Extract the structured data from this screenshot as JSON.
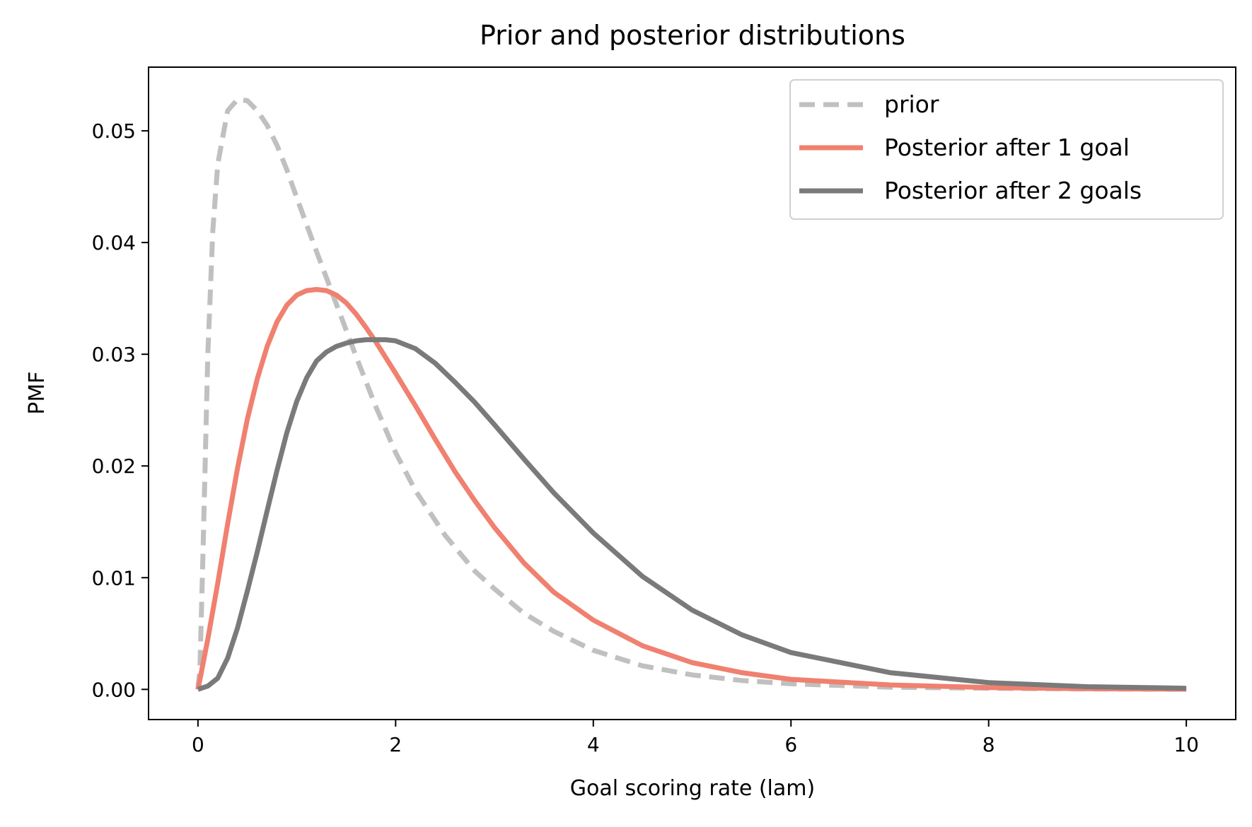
{
  "chart_data": {
    "type": "line",
    "title": "Prior and posterior distributions",
    "xlabel": "Goal scoring rate (lam)",
    "ylabel": "PMF",
    "xlim": [
      -0.5,
      10.5
    ],
    "ylim": [
      -0.0027,
      0.0557
    ],
    "xticks": [
      0,
      2,
      4,
      6,
      8,
      10
    ],
    "yticks": [
      0.0,
      0.01,
      0.02,
      0.03,
      0.04,
      0.05
    ],
    "xtick_labels": [
      "0",
      "2",
      "4",
      "6",
      "8",
      "10"
    ],
    "ytick_labels": [
      "0.00",
      "0.01",
      "0.02",
      "0.03",
      "0.04",
      "0.05"
    ],
    "grid": false,
    "legend_position": "top-right",
    "series": [
      {
        "name": "prior",
        "color": "#c0c0c0",
        "style": "dashed",
        "points": [
          [
            0,
            0
          ],
          [
            0.02,
            0.002
          ],
          [
            0.05,
            0.012
          ],
          [
            0.1,
            0.03
          ],
          [
            0.15,
            0.041
          ],
          [
            0.2,
            0.047
          ],
          [
            0.3,
            0.0518
          ],
          [
            0.4,
            0.0528
          ],
          [
            0.5,
            0.0527
          ],
          [
            0.6,
            0.0518
          ],
          [
            0.7,
            0.0505
          ],
          [
            0.8,
            0.0487
          ],
          [
            0.9,
            0.0465
          ],
          [
            1.0,
            0.044
          ],
          [
            1.2,
            0.0392
          ],
          [
            1.4,
            0.0345
          ],
          [
            1.6,
            0.0298
          ],
          [
            1.8,
            0.0253
          ],
          [
            2.0,
            0.0212
          ],
          [
            2.2,
            0.0178
          ],
          [
            2.5,
            0.0138
          ],
          [
            2.8,
            0.0106
          ],
          [
            3.0,
            0.009
          ],
          [
            3.3,
            0.0068
          ],
          [
            3.6,
            0.0052
          ],
          [
            4.0,
            0.0035
          ],
          [
            4.5,
            0.0021
          ],
          [
            5.0,
            0.0013
          ],
          [
            5.5,
            0.0008
          ],
          [
            6.0,
            0.0005
          ],
          [
            7.0,
            0.0002
          ],
          [
            8.0,
            0.0001
          ],
          [
            9.0,
            4e-05
          ],
          [
            10.0,
            1e-05
          ]
        ]
      },
      {
        "name": "Posterior after 1 goal",
        "color": "#f08070",
        "style": "solid",
        "points": [
          [
            0,
            0
          ],
          [
            0.1,
            0.0045
          ],
          [
            0.2,
            0.0095
          ],
          [
            0.3,
            0.0148
          ],
          [
            0.4,
            0.0198
          ],
          [
            0.5,
            0.0242
          ],
          [
            0.6,
            0.0278
          ],
          [
            0.7,
            0.0307
          ],
          [
            0.8,
            0.0329
          ],
          [
            0.9,
            0.0344
          ],
          [
            1.0,
            0.0353
          ],
          [
            1.1,
            0.0357
          ],
          [
            1.2,
            0.0358
          ],
          [
            1.3,
            0.0357
          ],
          [
            1.4,
            0.0353
          ],
          [
            1.5,
            0.0346
          ],
          [
            1.6,
            0.0336
          ],
          [
            1.7,
            0.0324
          ],
          [
            1.8,
            0.0311
          ],
          [
            1.9,
            0.0297
          ],
          [
            2.0,
            0.0283
          ],
          [
            2.2,
            0.0254
          ],
          [
            2.4,
            0.0224
          ],
          [
            2.6,
            0.0195
          ],
          [
            2.8,
            0.0169
          ],
          [
            3.0,
            0.0145
          ],
          [
            3.3,
            0.0113
          ],
          [
            3.6,
            0.0087
          ],
          [
            4.0,
            0.0062
          ],
          [
            4.5,
            0.0039
          ],
          [
            5.0,
            0.0024
          ],
          [
            5.5,
            0.0015
          ],
          [
            6.0,
            0.0009
          ],
          [
            7.0,
            0.0004
          ],
          [
            8.0,
            0.00016
          ],
          [
            9.0,
            6e-05
          ],
          [
            10.0,
            2e-05
          ]
        ]
      },
      {
        "name": "Posterior after 2 goals",
        "color": "#7a7a7a",
        "style": "solid",
        "points": [
          [
            0,
            0
          ],
          [
            0.1,
            0.0003
          ],
          [
            0.2,
            0.001
          ],
          [
            0.3,
            0.0028
          ],
          [
            0.4,
            0.0055
          ],
          [
            0.5,
            0.0088
          ],
          [
            0.6,
            0.0123
          ],
          [
            0.7,
            0.016
          ],
          [
            0.8,
            0.0196
          ],
          [
            0.9,
            0.023
          ],
          [
            1.0,
            0.0258
          ],
          [
            1.1,
            0.0279
          ],
          [
            1.2,
            0.0294
          ],
          [
            1.3,
            0.0302
          ],
          [
            1.4,
            0.0307
          ],
          [
            1.5,
            0.031
          ],
          [
            1.6,
            0.0312
          ],
          [
            1.7,
            0.0313
          ],
          [
            1.8,
            0.0313
          ],
          [
            1.9,
            0.0313
          ],
          [
            2.0,
            0.0312
          ],
          [
            2.2,
            0.0305
          ],
          [
            2.4,
            0.0292
          ],
          [
            2.6,
            0.0275
          ],
          [
            2.8,
            0.0257
          ],
          [
            3.0,
            0.0237
          ],
          [
            3.3,
            0.0206
          ],
          [
            3.6,
            0.0176
          ],
          [
            4.0,
            0.014
          ],
          [
            4.5,
            0.0101
          ],
          [
            5.0,
            0.0071
          ],
          [
            5.5,
            0.0049
          ],
          [
            6.0,
            0.0033
          ],
          [
            7.0,
            0.0015
          ],
          [
            8.0,
            0.0006
          ],
          [
            9.0,
            0.00024
          ],
          [
            10.0,
            0.0001
          ]
        ]
      }
    ]
  }
}
